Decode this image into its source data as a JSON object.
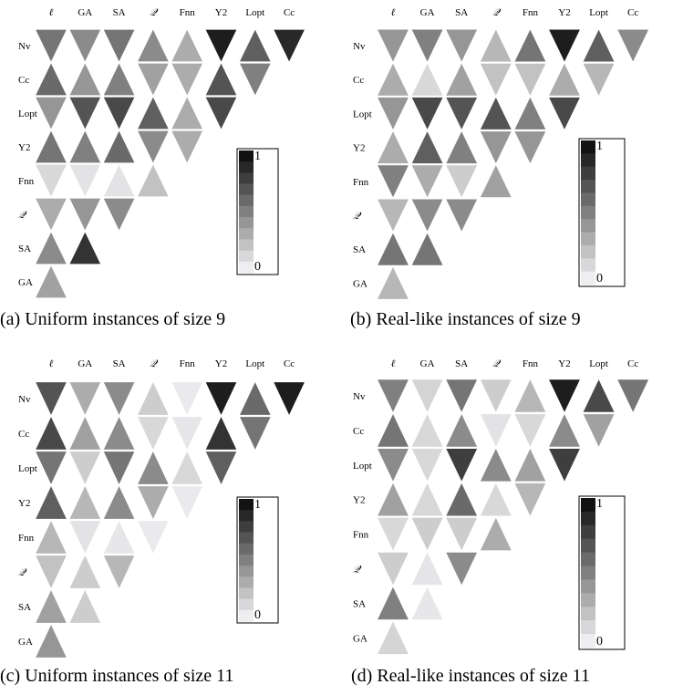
{
  "chart_data": [
    {
      "type": "heatmap",
      "caption": "(a) Uniform instances of size 9",
      "columns": [
        "ℓ",
        "GA",
        "SA",
        "𝒬",
        "Fnn",
        "Y2",
        "Lopt",
        "Cc"
      ],
      "rows": [
        "Nv",
        "Cc",
        "Lopt",
        "Y2",
        "Fnn",
        "𝒬",
        "SA",
        "GA"
      ],
      "colorbar": {
        "min_label": "0",
        "max_label": "1",
        "range": [
          0,
          1
        ]
      },
      "cells": [
        [
          {
            "v": 0.55,
            "o": "down"
          },
          {
            "v": 0.45,
            "o": "down"
          },
          {
            "v": 0.55,
            "o": "down"
          },
          {
            "v": 0.45,
            "o": "up"
          },
          {
            "v": 0.3,
            "o": "up"
          },
          {
            "v": 0.95,
            "o": "down"
          },
          {
            "v": 0.65,
            "o": "up"
          },
          {
            "v": 0.9,
            "o": "down"
          }
        ],
        [
          {
            "v": 0.6,
            "o": "up"
          },
          {
            "v": 0.4,
            "o": "up"
          },
          {
            "v": 0.5,
            "o": "up"
          },
          {
            "v": 0.35,
            "o": "down"
          },
          {
            "v": 0.3,
            "o": "down"
          },
          {
            "v": 0.7,
            "o": "up"
          },
          {
            "v": 0.5,
            "o": "down"
          }
        ],
        [
          {
            "v": 0.4,
            "o": "down"
          },
          {
            "v": 0.7,
            "o": "down"
          },
          {
            "v": 0.75,
            "o": "down"
          },
          {
            "v": 0.65,
            "o": "up"
          },
          {
            "v": 0.3,
            "o": "up"
          },
          {
            "v": 0.75,
            "o": "down"
          }
        ],
        [
          {
            "v": 0.55,
            "o": "up"
          },
          {
            "v": 0.5,
            "o": "up"
          },
          {
            "v": 0.6,
            "o": "up"
          },
          {
            "v": 0.45,
            "o": "down"
          },
          {
            "v": 0.3,
            "o": "down"
          }
        ],
        [
          {
            "v": 0.1,
            "o": "down"
          },
          {
            "v": 0.05,
            "o": "down"
          },
          {
            "v": 0.05,
            "o": "up"
          },
          {
            "v": 0.2,
            "o": "up"
          }
        ],
        [
          {
            "v": 0.3,
            "o": "down"
          },
          {
            "v": 0.4,
            "o": "down"
          },
          {
            "v": 0.45,
            "o": "down"
          }
        ],
        [
          {
            "v": 0.45,
            "o": "up"
          },
          {
            "v": 0.85,
            "o": "up"
          }
        ],
        [
          {
            "v": 0.35,
            "o": "up"
          }
        ]
      ]
    },
    {
      "type": "heatmap",
      "caption": "(b) Real-like instances of size 9",
      "columns": [
        "ℓ",
        "GA",
        "SA",
        "𝒬",
        "Fnn",
        "Y2",
        "Lopt",
        "Cc"
      ],
      "rows": [
        "Nv",
        "Cc",
        "Lopt",
        "Y2",
        "Fnn",
        "𝒬",
        "SA",
        "GA"
      ],
      "colorbar": {
        "min_label": "0",
        "max_label": "1",
        "range": [
          0,
          1
        ]
      },
      "cells": [
        [
          {
            "v": 0.4,
            "o": "down"
          },
          {
            "v": 0.5,
            "o": "down"
          },
          {
            "v": 0.4,
            "o": "down"
          },
          {
            "v": 0.25,
            "o": "up"
          },
          {
            "v": 0.55,
            "o": "up"
          },
          {
            "v": 0.95,
            "o": "down"
          },
          {
            "v": 0.65,
            "o": "up"
          },
          {
            "v": 0.45,
            "o": "down"
          }
        ],
        [
          {
            "v": 0.3,
            "o": "up"
          },
          {
            "v": 0.1,
            "o": "up"
          },
          {
            "v": 0.35,
            "o": "up"
          },
          {
            "v": 0.2,
            "o": "down"
          },
          {
            "v": 0.2,
            "o": "down"
          },
          {
            "v": 0.3,
            "o": "up"
          },
          {
            "v": 0.25,
            "o": "down"
          }
        ],
        [
          {
            "v": 0.4,
            "o": "down"
          },
          {
            "v": 0.75,
            "o": "down"
          },
          {
            "v": 0.7,
            "o": "down"
          },
          {
            "v": 0.7,
            "o": "up"
          },
          {
            "v": 0.5,
            "o": "up"
          },
          {
            "v": 0.75,
            "o": "down"
          }
        ],
        [
          {
            "v": 0.3,
            "o": "up"
          },
          {
            "v": 0.65,
            "o": "up"
          },
          {
            "v": 0.5,
            "o": "up"
          },
          {
            "v": 0.4,
            "o": "down"
          },
          {
            "v": 0.4,
            "o": "down"
          }
        ],
        [
          {
            "v": 0.5,
            "o": "down"
          },
          {
            "v": 0.3,
            "o": "down"
          },
          {
            "v": 0.15,
            "o": "down"
          },
          {
            "v": 0.35,
            "o": "up"
          }
        ],
        [
          {
            "v": 0.25,
            "o": "down"
          },
          {
            "v": 0.45,
            "o": "down"
          },
          {
            "v": 0.45,
            "o": "down"
          }
        ],
        [
          {
            "v": 0.55,
            "o": "up"
          },
          {
            "v": 0.55,
            "o": "up"
          }
        ],
        [
          {
            "v": 0.25,
            "o": "up"
          }
        ]
      ]
    },
    {
      "type": "heatmap",
      "caption": "(c) Uniform instances of size 11",
      "columns": [
        "ℓ",
        "GA",
        "SA",
        "𝒬",
        "Fnn",
        "Y2",
        "Lopt",
        "Cc"
      ],
      "rows": [
        "Nv",
        "Cc",
        "Lopt",
        "Y2",
        "Fnn",
        "𝒬",
        "SA",
        "GA"
      ],
      "colorbar": {
        "min_label": "0",
        "max_label": "1",
        "range": [
          0,
          1
        ]
      },
      "cells": [
        [
          {
            "v": 0.7,
            "o": "down"
          },
          {
            "v": 0.3,
            "o": "down"
          },
          {
            "v": 0.45,
            "o": "down"
          },
          {
            "v": 0.15,
            "o": "up"
          },
          {
            "v": 0.02,
            "o": "down"
          },
          {
            "v": 0.95,
            "o": "down"
          },
          {
            "v": 0.6,
            "o": "up"
          },
          {
            "v": 0.95,
            "o": "down"
          }
        ],
        [
          {
            "v": 0.75,
            "o": "up"
          },
          {
            "v": 0.35,
            "o": "up"
          },
          {
            "v": 0.45,
            "o": "up"
          },
          {
            "v": 0.1,
            "o": "down"
          },
          {
            "v": 0.03,
            "o": "down"
          },
          {
            "v": 0.85,
            "o": "up"
          },
          {
            "v": 0.55,
            "o": "down"
          }
        ],
        [
          {
            "v": 0.55,
            "o": "down"
          },
          {
            "v": 0.15,
            "o": "down"
          },
          {
            "v": 0.55,
            "o": "down"
          },
          {
            "v": 0.45,
            "o": "up"
          },
          {
            "v": 0.1,
            "o": "up"
          },
          {
            "v": 0.65,
            "o": "down"
          }
        ],
        [
          {
            "v": 0.65,
            "o": "up"
          },
          {
            "v": 0.25,
            "o": "up"
          },
          {
            "v": 0.45,
            "o": "up"
          },
          {
            "v": 0.3,
            "o": "down"
          },
          {
            "v": 0.02,
            "o": "down"
          }
        ],
        [
          {
            "v": 0.25,
            "o": "up"
          },
          {
            "v": 0.05,
            "o": "down"
          },
          {
            "v": 0.03,
            "o": "up"
          },
          {
            "v": 0.02,
            "o": "down"
          }
        ],
        [
          {
            "v": 0.2,
            "o": "down"
          },
          {
            "v": 0.15,
            "o": "up"
          },
          {
            "v": 0.25,
            "o": "down"
          }
        ],
        [
          {
            "v": 0.35,
            "o": "up"
          },
          {
            "v": 0.15,
            "o": "up"
          }
        ],
        [
          {
            "v": 0.4,
            "o": "up"
          }
        ]
      ]
    },
    {
      "type": "heatmap",
      "caption": "(d) Real-like instances of size 11",
      "columns": [
        "ℓ",
        "GA",
        "SA",
        "𝒬",
        "Fnn",
        "Y2",
        "Lopt",
        "Cc"
      ],
      "rows": [
        "Nv",
        "Cc",
        "Lopt",
        "Y2",
        "Fnn",
        "𝒬",
        "SA",
        "GA"
      ],
      "colorbar": {
        "min_label": "0",
        "max_label": "1",
        "range": [
          0,
          1
        ]
      },
      "cells": [
        [
          {
            "v": 0.5,
            "o": "down"
          },
          {
            "v": 0.12,
            "o": "down"
          },
          {
            "v": 0.55,
            "o": "down"
          },
          {
            "v": 0.15,
            "o": "down"
          },
          {
            "v": 0.25,
            "o": "up"
          },
          {
            "v": 0.95,
            "o": "down"
          },
          {
            "v": 0.75,
            "o": "up"
          },
          {
            "v": 0.55,
            "o": "down"
          }
        ],
        [
          {
            "v": 0.55,
            "o": "up"
          },
          {
            "v": 0.1,
            "o": "up"
          },
          {
            "v": 0.45,
            "o": "up"
          },
          {
            "v": 0.05,
            "o": "down"
          },
          {
            "v": 0.1,
            "o": "down"
          },
          {
            "v": 0.45,
            "o": "up"
          },
          {
            "v": 0.35,
            "o": "down"
          }
        ],
        [
          {
            "v": 0.45,
            "o": "down"
          },
          {
            "v": 0.1,
            "o": "down"
          },
          {
            "v": 0.8,
            "o": "down"
          },
          {
            "v": 0.45,
            "o": "up"
          },
          {
            "v": 0.35,
            "o": "up"
          },
          {
            "v": 0.8,
            "o": "down"
          }
        ],
        [
          {
            "v": 0.35,
            "o": "up"
          },
          {
            "v": 0.1,
            "o": "up"
          },
          {
            "v": 0.6,
            "o": "up"
          },
          {
            "v": 0.1,
            "o": "up"
          },
          {
            "v": 0.25,
            "o": "down"
          }
        ],
        [
          {
            "v": 0.1,
            "o": "down"
          },
          {
            "v": 0.15,
            "o": "down"
          },
          {
            "v": 0.15,
            "o": "down"
          },
          {
            "v": 0.3,
            "o": "up"
          }
        ],
        [
          {
            "v": 0.15,
            "o": "down"
          },
          {
            "v": 0.04,
            "o": "up"
          },
          {
            "v": 0.45,
            "o": "down"
          }
        ],
        [
          {
            "v": 0.5,
            "o": "up"
          },
          {
            "v": 0.03,
            "o": "up"
          }
        ],
        [
          {
            "v": 0.12,
            "o": "up"
          }
        ]
      ]
    }
  ]
}
